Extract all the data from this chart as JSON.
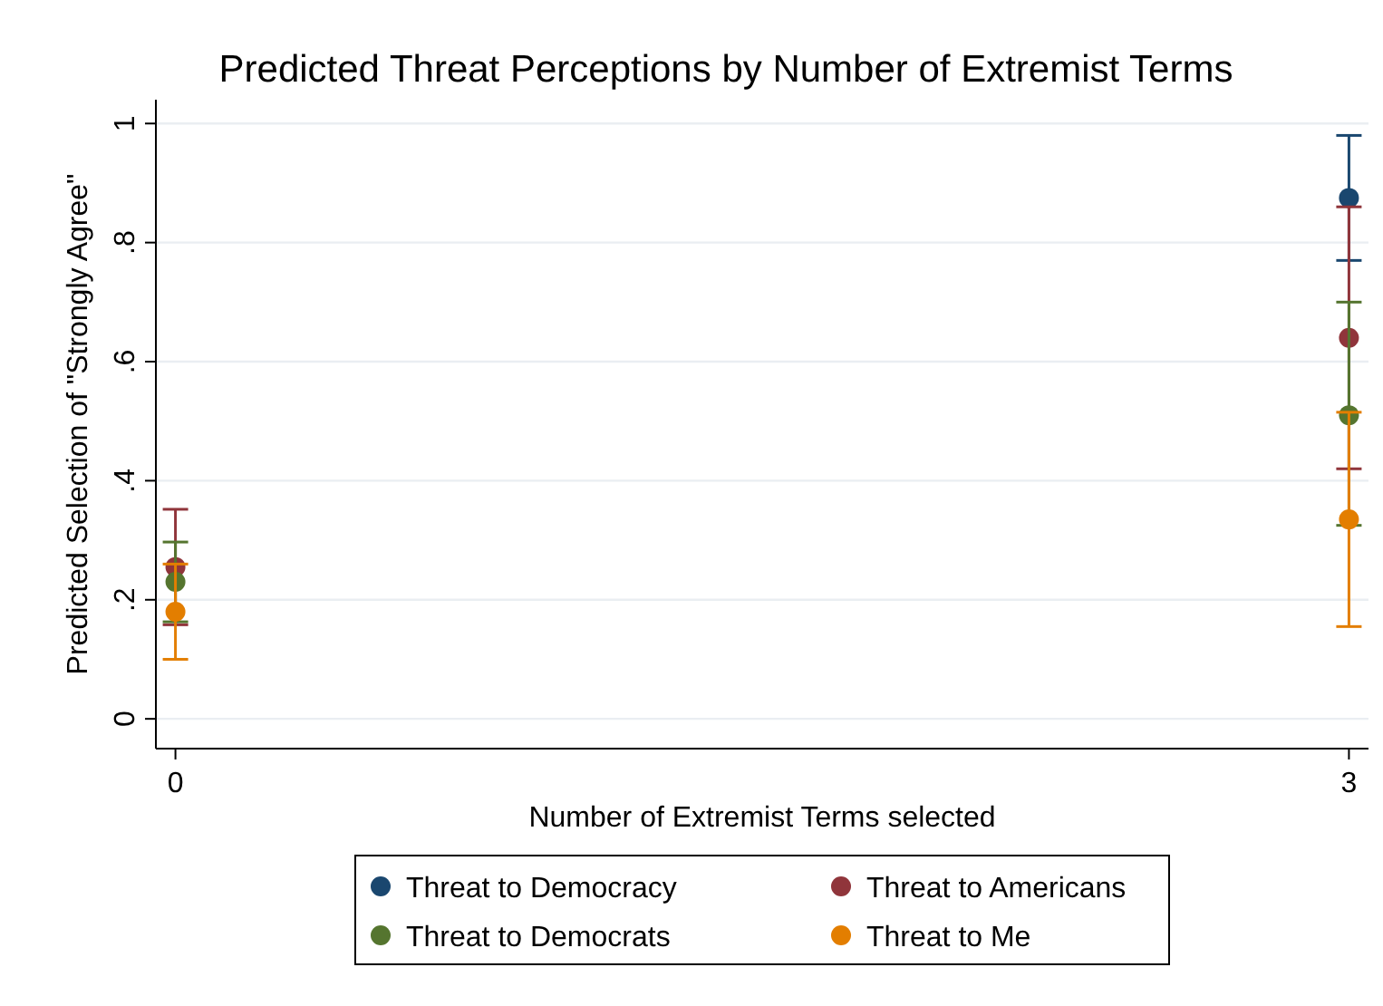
{
  "chart_data": {
    "type": "scatter",
    "title": "Predicted Threat Perceptions by Number of Extremist Terms",
    "xlabel": "Number of Extremist Terms selected",
    "ylabel": "Predicted Selection of \"Strongly Agree\"",
    "x": [
      0,
      3
    ],
    "xlim": [
      -0.05,
      3.05
    ],
    "xticks": [
      0,
      3
    ],
    "ylim": [
      -0.05,
      1.04
    ],
    "yticks": [
      {
        "value": 0,
        "label": "0"
      },
      {
        "value": 0.2,
        "label": ".2"
      },
      {
        "value": 0.4,
        "label": ".4"
      },
      {
        "value": 0.6,
        "label": ".6"
      },
      {
        "value": 0.8,
        "label": ".8"
      },
      {
        "value": 1,
        "label": "1"
      }
    ],
    "grid": "y",
    "legend": "bottom",
    "marker": "circle",
    "series": [
      {
        "name": "Threat to Democracy",
        "color": "#1a476f",
        "values": [
          null,
          0.875
        ],
        "errors": [
          null,
          [
            0.77,
            0.98
          ]
        ]
      },
      {
        "name": "Threat to Americans",
        "color": "#90353b",
        "values": [
          0.255,
          0.64
        ],
        "errors": [
          [
            0.158,
            0.352
          ],
          [
            0.42,
            0.86
          ]
        ]
      },
      {
        "name": "Threat to Democrats",
        "color": "#55752f",
        "values": [
          0.23,
          0.51
        ],
        "errors": [
          [
            0.163,
            0.297
          ],
          [
            0.325,
            0.7
          ]
        ]
      },
      {
        "name": "Threat to Me",
        "color": "#e37e00",
        "values": [
          0.18,
          0.335
        ],
        "errors": [
          [
            0.1,
            0.26
          ],
          [
            0.155,
            0.515
          ]
        ]
      }
    ]
  }
}
